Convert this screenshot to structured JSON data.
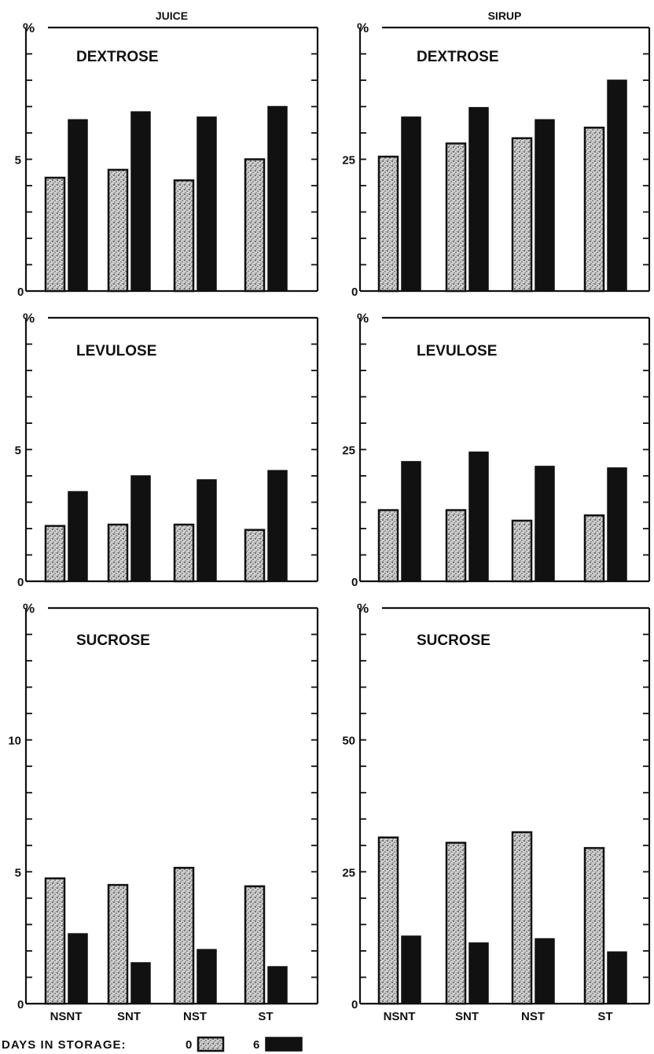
{
  "chart_data": [
    {
      "type": "bar",
      "column": "JUICE",
      "title": "DEXTROSE",
      "unit": "%",
      "categories": [
        "NSNT",
        "SNT",
        "NST",
        "ST"
      ],
      "yticks": [
        0,
        5
      ],
      "ylim": [
        0,
        10
      ],
      "series": [
        {
          "name": "0",
          "values": [
            4.3,
            4.6,
            4.2,
            5.0
          ]
        },
        {
          "name": "6",
          "values": [
            6.5,
            6.8,
            6.6,
            7.0
          ]
        }
      ]
    },
    {
      "type": "bar",
      "column": "SIRUP",
      "title": "DEXTROSE",
      "unit": "%",
      "categories": [
        "NSNT",
        "SNT",
        "NST",
        "ST"
      ],
      "yticks": [
        0,
        25
      ],
      "ylim": [
        0,
        50
      ],
      "series": [
        {
          "name": "0",
          "values": [
            25.5,
            28.0,
            29.0,
            31.0
          ]
        },
        {
          "name": "6",
          "values": [
            33.0,
            34.8,
            32.5,
            40.0
          ]
        }
      ]
    },
    {
      "type": "bar",
      "column": "JUICE",
      "title": "LEVULOSE",
      "unit": "%",
      "categories": [
        "NSNT",
        "SNT",
        "NST",
        "ST"
      ],
      "yticks": [
        0,
        5
      ],
      "ylim": [
        0,
        10
      ],
      "series": [
        {
          "name": "0",
          "values": [
            2.1,
            2.15,
            2.15,
            1.95
          ]
        },
        {
          "name": "6",
          "values": [
            3.4,
            4.0,
            3.85,
            4.2
          ]
        }
      ]
    },
    {
      "type": "bar",
      "column": "SIRUP",
      "title": "LEVULOSE",
      "unit": "%",
      "categories": [
        "NSNT",
        "SNT",
        "NST",
        "ST"
      ],
      "yticks": [
        0,
        25
      ],
      "ylim": [
        0,
        50
      ],
      "series": [
        {
          "name": "0",
          "values": [
            13.5,
            13.5,
            11.5,
            12.5
          ]
        },
        {
          "name": "6",
          "values": [
            22.7,
            24.5,
            21.8,
            21.5
          ]
        }
      ]
    },
    {
      "type": "bar",
      "column": "JUICE",
      "title": "SUCROSE",
      "unit": "%",
      "categories": [
        "NSNT",
        "SNT",
        "NST",
        "ST"
      ],
      "yticks": [
        0,
        5,
        10
      ],
      "ylim": [
        0,
        15
      ],
      "series": [
        {
          "name": "0",
          "values": [
            4.75,
            4.5,
            5.15,
            4.45
          ]
        },
        {
          "name": "6",
          "values": [
            2.65,
            1.55,
            2.05,
            1.4
          ]
        }
      ]
    },
    {
      "type": "bar",
      "column": "SIRUP",
      "title": "SUCROSE",
      "unit": "%",
      "categories": [
        "NSNT",
        "SNT",
        "NST",
        "ST"
      ],
      "yticks": [
        0,
        25,
        50
      ],
      "ylim": [
        0,
        75
      ],
      "series": [
        {
          "name": "0",
          "values": [
            31.5,
            30.5,
            32.5,
            29.5
          ]
        },
        {
          "name": "6",
          "values": [
            12.8,
            11.5,
            12.3,
            9.8
          ]
        }
      ]
    }
  ],
  "legend": {
    "label": "DAYS IN STORAGE:",
    "entries": [
      "0",
      "6"
    ]
  }
}
